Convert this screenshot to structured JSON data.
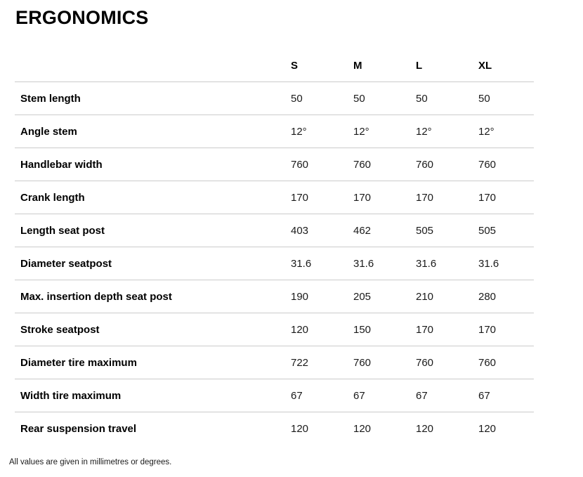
{
  "page": {
    "title": "ERGONOMICS",
    "footnote": "All values are given in millimetres or degrees."
  },
  "colors": {
    "divider": "#cbcbcb",
    "heading_text": "#000000",
    "value_text": "#1a1a1a"
  },
  "table": {
    "columns": [
      "S",
      "M",
      "L",
      "XL"
    ],
    "rows": [
      {
        "label": "Stem length",
        "values": [
          "50",
          "50",
          "50",
          "50"
        ]
      },
      {
        "label": "Angle stem",
        "values": [
          "12°",
          "12°",
          "12°",
          "12°"
        ]
      },
      {
        "label": "Handlebar width",
        "values": [
          "760",
          "760",
          "760",
          "760"
        ]
      },
      {
        "label": "Crank length",
        "values": [
          "170",
          "170",
          "170",
          "170"
        ]
      },
      {
        "label": "Length seat post",
        "values": [
          "403",
          "462",
          "505",
          "505"
        ]
      },
      {
        "label": "Diameter seatpost",
        "values": [
          "31.6",
          "31.6",
          "31.6",
          "31.6"
        ]
      },
      {
        "label": "Max. insertion depth seat post",
        "values": [
          "190",
          "205",
          "210",
          "280"
        ]
      },
      {
        "label": "Stroke seatpost",
        "values": [
          "120",
          "150",
          "170",
          "170"
        ]
      },
      {
        "label": "Diameter tire maximum",
        "values": [
          "722",
          "760",
          "760",
          "760"
        ]
      },
      {
        "label": "Width tire maximum",
        "values": [
          "67",
          "67",
          "67",
          "67"
        ]
      },
      {
        "label": "Rear suspension travel",
        "values": [
          "120",
          "120",
          "120",
          "120"
        ]
      }
    ]
  }
}
